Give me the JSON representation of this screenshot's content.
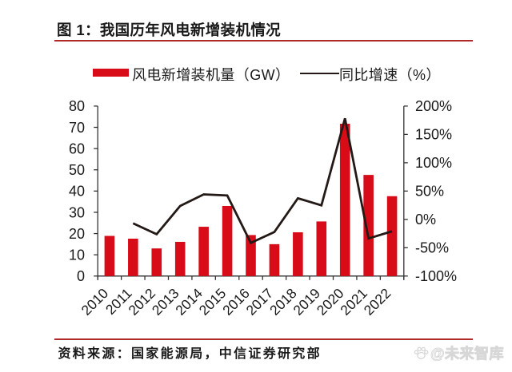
{
  "header": {
    "title": "图 1：我国历年风电新增装机情况"
  },
  "legend": {
    "bar_label": "风电新增装机量（GW）",
    "line_label": "同比增速（%）"
  },
  "footer": {
    "source": "资料来源：国家能源局，中信证券研究部",
    "watermark": "@未来智库",
    "watermark_icon": "paw-icon"
  },
  "colors": {
    "bar": "#d80c18",
    "line": "#231916",
    "rule": "#b02a2a",
    "axis": "#333333",
    "text": "#1a1a1a",
    "watermark": "#d2d2d2"
  },
  "chart_data": {
    "type": "bar",
    "subtype": "bar+line dual axis",
    "title": "图 1：我国历年风电新增装机情况",
    "categories": [
      "2010",
      "2011",
      "2012",
      "2013",
      "2014",
      "2015",
      "2016",
      "2017",
      "2018",
      "2019",
      "2020",
      "2021",
      "2022"
    ],
    "series": [
      {
        "name": "风电新增装机量（GW）",
        "type": "bar",
        "axis": "left",
        "values": [
          18.9,
          17.6,
          13.0,
          16.1,
          23.2,
          33.0,
          19.3,
          15.0,
          20.6,
          25.7,
          71.7,
          47.6,
          37.6
        ]
      },
      {
        "name": "同比增速（%）",
        "type": "line",
        "axis": "right",
        "values": [
          null,
          -6.9,
          -26.1,
          23.8,
          44.1,
          42.2,
          -41.5,
          -22.3,
          37.3,
          24.8,
          178.4,
          -33.6,
          -21.0
        ]
      }
    ],
    "left_axis": {
      "min": 0,
      "max": 80,
      "step": 10,
      "tick_labels": [
        "0",
        "10",
        "20",
        "30",
        "40",
        "50",
        "60",
        "70",
        "80"
      ]
    },
    "right_axis": {
      "min": -100,
      "max": 200,
      "step": 50,
      "tick_labels": [
        "-100%",
        "-50%",
        "0%",
        "50%",
        "100%",
        "150%",
        "200%"
      ]
    },
    "grid": false,
    "legend_position": "top-center",
    "xlabel": "",
    "ylabel": ""
  }
}
